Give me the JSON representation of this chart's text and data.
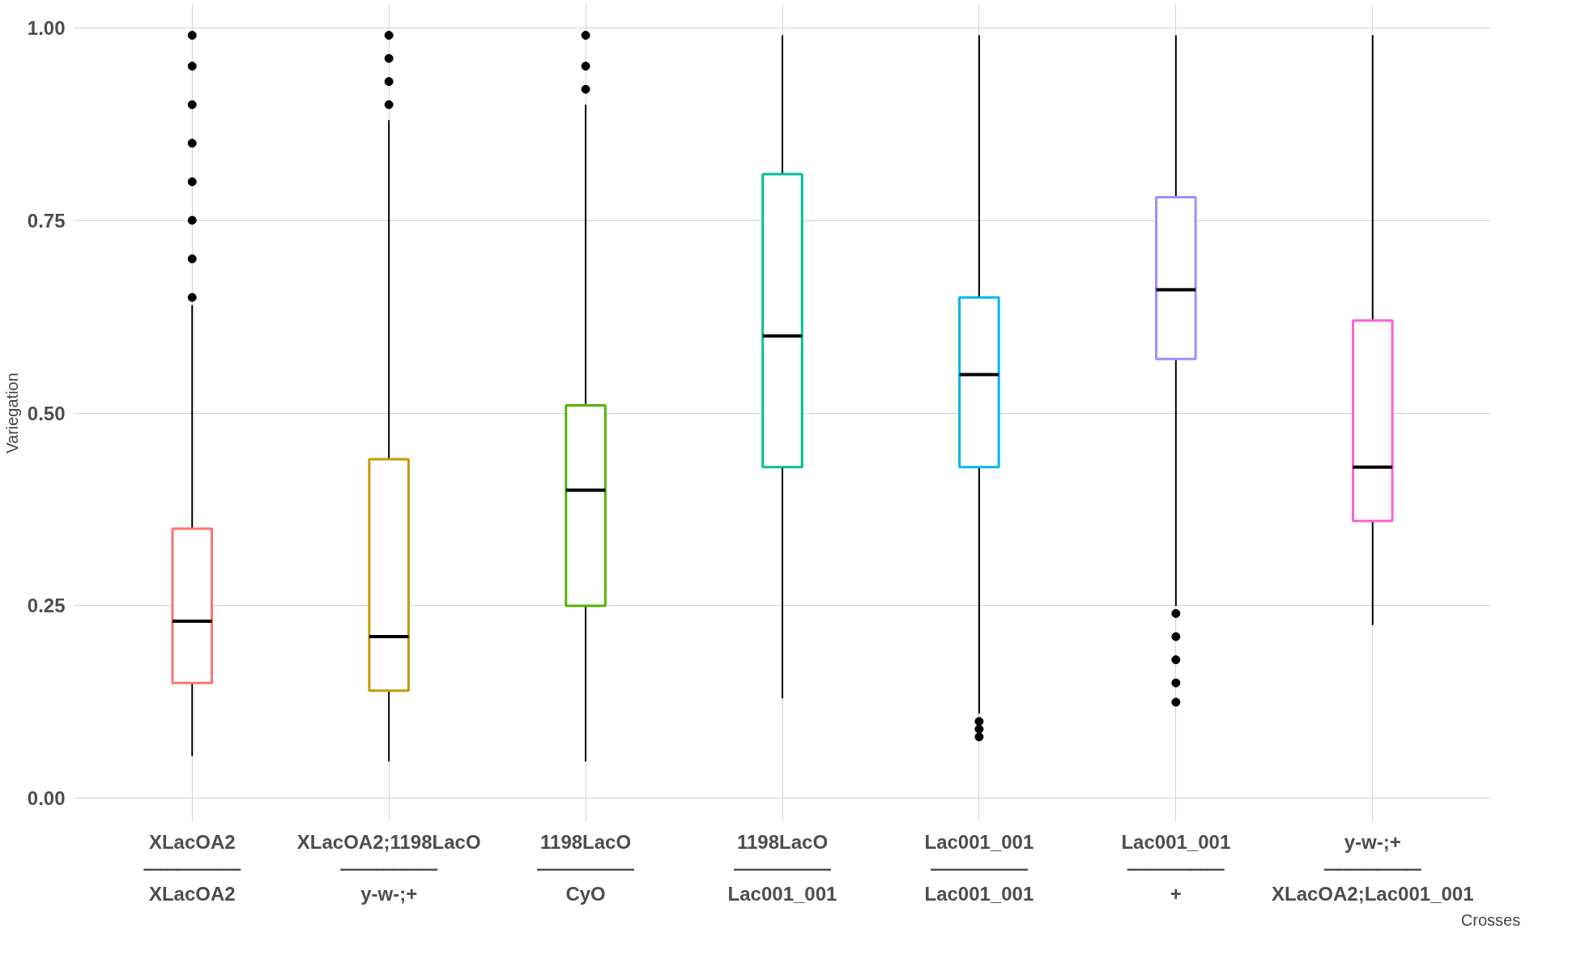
{
  "chart_data": {
    "type": "box",
    "xlabel": "Crosses",
    "ylabel": "Variegation",
    "categories": [
      "XLacOA2\n―――――\nXLacOA2",
      "XLacOA2;1198LacO\n―――――\ny-w-;+",
      "1198LacO\n―――――\nCyO",
      "1198LacO\n―――――\nLac001_001",
      "Lac001_001\n―――――\nLac001_001",
      "Lac001_001\n―――――\n+",
      "y-w-;+\n―――――\nXLacOA2;Lac001_001"
    ],
    "colors": [
      "#f8766d",
      "#c49a00",
      "#53b400",
      "#00c094",
      "#00b6eb",
      "#a58aff",
      "#fb61d7"
    ],
    "boxes": [
      {
        "low": 0.055,
        "q1": 0.15,
        "median": 0.23,
        "q3": 0.35,
        "high": 0.64,
        "outliers": [
          0.65,
          0.7,
          0.75,
          0.8,
          0.85,
          0.9,
          0.95,
          0.99
        ]
      },
      {
        "low": 0.048,
        "q1": 0.14,
        "median": 0.21,
        "q3": 0.44,
        "high": 0.88,
        "outliers": [
          0.9,
          0.93,
          0.96,
          0.99
        ]
      },
      {
        "low": 0.048,
        "q1": 0.25,
        "median": 0.4,
        "q3": 0.51,
        "high": 0.9,
        "outliers": [
          0.92,
          0.95,
          0.99
        ]
      },
      {
        "low": 0.13,
        "q1": 0.43,
        "median": 0.6,
        "q3": 0.81,
        "high": 0.99
      },
      {
        "low": 0.11,
        "q1": 0.43,
        "median": 0.55,
        "q3": 0.65,
        "high": 0.99,
        "outliers": [
          0.08,
          0.09,
          0.1
        ]
      },
      {
        "low": 0.25,
        "q1": 0.57,
        "median": 0.66,
        "q3": 0.78,
        "high": 0.99,
        "outliers": [
          0.125,
          0.15,
          0.18,
          0.21,
          0.24
        ]
      },
      {
        "low": 0.225,
        "q1": 0.36,
        "median": 0.43,
        "q3": 0.62,
        "high": 0.99
      }
    ],
    "ylim": [
      -0.03,
      1.03
    ],
    "yticks": [
      {
        "value": 0,
        "label": "0.00"
      },
      {
        "value": 0.25,
        "label": "0.25"
      },
      {
        "value": 0.5,
        "label": "0.50"
      },
      {
        "value": 0.75,
        "label": "0.75"
      },
      {
        "value": 1,
        "label": "1.00"
      }
    ],
    "grid": true
  }
}
